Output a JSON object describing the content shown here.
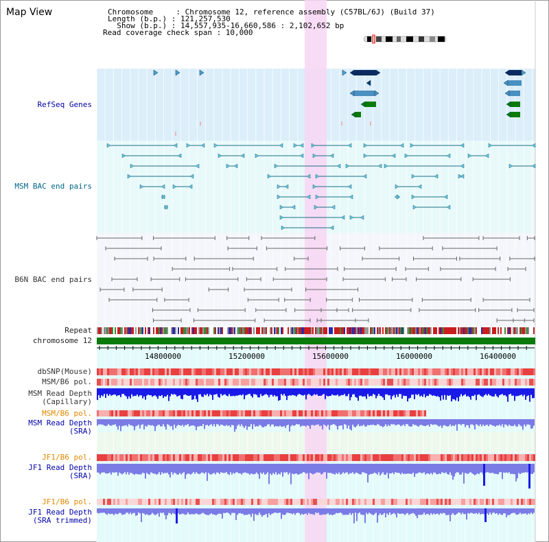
{
  "header": {
    "title": "Map View",
    "info_lines": [
      "Chromosome     : Chromosome 12, reference assembly (C57BL/6J) (Build 37)",
      "Length (b.p.) : 121,257,530",
      "  Show (b.p.) : 14,557,935-16,660,586 : 2,102,652 bp",
      "Read coverage check span : 10,000"
    ]
  },
  "tracks": {
    "refseq": "RefSeq Genes",
    "msm_bac": "MSM BAC end pairs",
    "b6n_bac": "B6N BAC end pairs",
    "repeat": "Repeat",
    "chromosome": "chromosome 12",
    "dbsnp": "dbSNP(Mouse)",
    "msm_b6_pol_cap": "MSM/B6 pol.",
    "msm_depth_cap_1": "MSM Read Depth",
    "msm_depth_cap_2": "(Capillary)",
    "msm_b6_pol_sra": "MSM/B6 pol.",
    "msm_depth_sra_1": "MSM Read Depth",
    "msm_depth_sra_2": "(SRA)",
    "jf1_b6_pol_sra": "JF1/B6 pol.",
    "jf1_depth_sra_1": "JF1 Read Depth",
    "jf1_depth_sra_2": "(SRA)",
    "jf1_b6_pol_trim": "JF1/B6 pol.",
    "jf1_depth_trim_1": "JF1 Read Depth",
    "jf1_depth_trim_2": "(SRA trimmed)"
  },
  "axis": {
    "start_bp": 14557935,
    "end_bp": 16660586,
    "tick_labels": [
      "14800000",
      "15200000",
      "15600000",
      "16000000",
      "16400000"
    ]
  },
  "colors": {
    "refseq_bg": "#dbeefa",
    "bac_bg": "#e8f9fa",
    "b6n_bg": "#f4f6fb",
    "lower_bg": "#e3fbfa",
    "highlight": "#f7d6f3",
    "chromosome_bar": "#0a7a0a",
    "teal_feature": "#1a6e86",
    "gray_feature": "#666666",
    "depth_blue": "#1a1ae8",
    "depth_lavender": "#7b7be6",
    "pol_red": "#e8443c"
  }
}
